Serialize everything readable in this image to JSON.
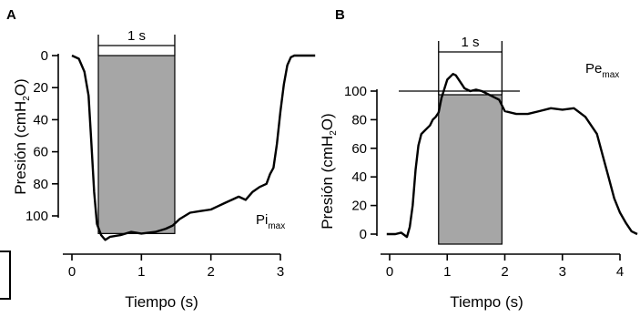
{
  "chart_data": [
    {
      "panel": "A",
      "type": "line",
      "xlabel": "Tiempo (s)",
      "ylabel_prefix": "Presión  (cmH",
      "ylabel_sub": "2",
      "ylabel_suffix": "O)",
      "series_label_main": "Pi",
      "series_label_sub": "max",
      "window_label": "1 s",
      "y_inverted": true,
      "xlim": [
        -0.1,
        3.55
      ],
      "ylim": [
        0,
        118
      ],
      "x_ticks": [
        0,
        1,
        2,
        3
      ],
      "y_ticks": [
        0,
        20,
        40,
        60,
        80,
        100
      ],
      "window_x": [
        0.38,
        1.48
      ],
      "window_top": 0,
      "window_bottom": 111,
      "x": [
        0.0,
        0.1,
        0.18,
        0.24,
        0.28,
        0.32,
        0.36,
        0.42,
        0.48,
        0.55,
        0.7,
        0.85,
        1.0,
        1.2,
        1.35,
        1.45,
        1.55,
        1.7,
        1.85,
        2.0,
        2.1,
        2.2,
        2.3,
        2.4,
        2.5,
        2.6,
        2.7,
        2.8,
        2.85,
        2.9,
        2.95,
        3.0,
        3.05,
        3.1,
        3.15,
        3.2,
        3.3,
        3.4,
        3.5
      ],
      "y": [
        0,
        2,
        10,
        25,
        55,
        85,
        105,
        112,
        115,
        113,
        112,
        110,
        111,
        110,
        108,
        106,
        102,
        98,
        97,
        96,
        94,
        92,
        90,
        88,
        90,
        85,
        82,
        80,
        74,
        70,
        55,
        35,
        18,
        6,
        1,
        0,
        0,
        0,
        0
      ]
    },
    {
      "panel": "B",
      "type": "line",
      "xlabel": "Tiempo (s)",
      "ylabel_prefix": "Presión  (cmH",
      "ylabel_sub": "2",
      "ylabel_suffix": "O)",
      "series_label_main": "Pe",
      "series_label_sub": "max",
      "window_label": "1 s",
      "reference_level": 100,
      "xlim": [
        -0.05,
        4.4
      ],
      "ylim": [
        -8,
        118
      ],
      "x_ticks": [
        0,
        1,
        2,
        3,
        4
      ],
      "y_ticks": [
        0,
        20,
        40,
        60,
        80,
        100
      ],
      "window_x": [
        0.85,
        1.95
      ],
      "x": [
        -0.05,
        0.1,
        0.2,
        0.3,
        0.35,
        0.4,
        0.45,
        0.5,
        0.55,
        0.6,
        0.65,
        0.7,
        0.75,
        0.8,
        0.85,
        0.9,
        1.0,
        1.1,
        1.15,
        1.2,
        1.3,
        1.4,
        1.5,
        1.6,
        1.7,
        1.8,
        1.9,
        2.0,
        2.2,
        2.4,
        2.6,
        2.8,
        3.0,
        3.2,
        3.4,
        3.6,
        3.7,
        3.8,
        3.9,
        4.0,
        4.1,
        4.2,
        4.3
      ],
      "y": [
        0,
        0,
        1,
        -2,
        5,
        20,
        45,
        62,
        70,
        72,
        74,
        76,
        80,
        82,
        85,
        95,
        108,
        112,
        111,
        108,
        102,
        100,
        101,
        100,
        98,
        96,
        94,
        86,
        84,
        84,
        86,
        88,
        87,
        88,
        82,
        70,
        55,
        40,
        25,
        15,
        8,
        2,
        0
      ]
    }
  ]
}
